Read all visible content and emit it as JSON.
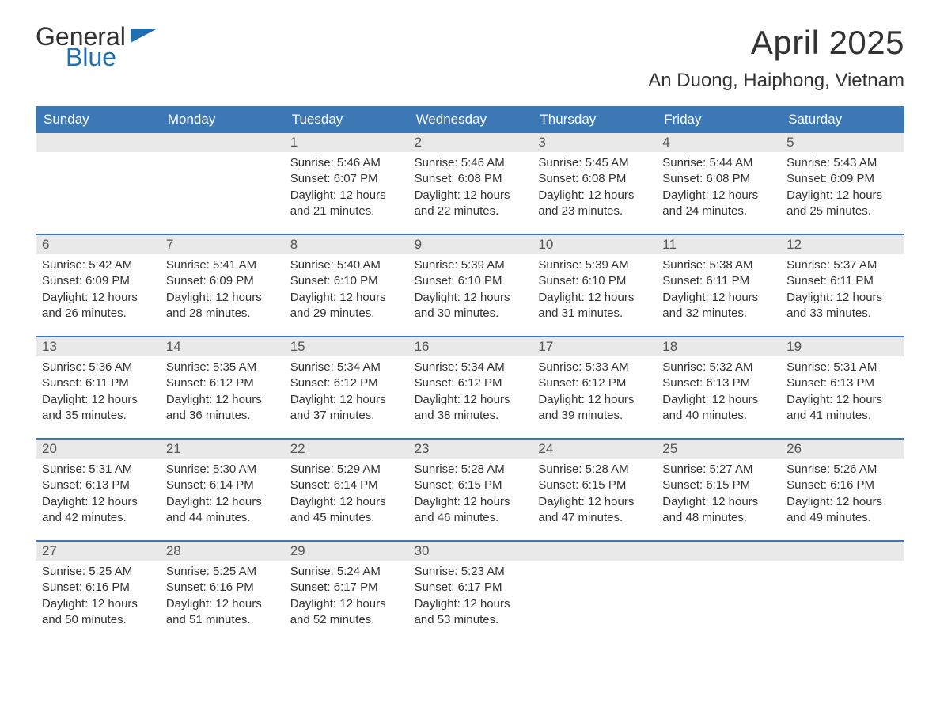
{
  "logo": {
    "text1": "General",
    "text2": "Blue",
    "color1": "#333333",
    "color2": "#1f6fb2",
    "flag_color": "#1f6fb2"
  },
  "title": "April 2025",
  "location": "An Duong, Haiphong, Vietnam",
  "weekday_header_bg": "#3b78b5",
  "weekday_header_fg": "#ffffff",
  "daynum_bg": "#e9e9e9",
  "row_border_color": "#3b78b5",
  "weekdays": [
    "Sunday",
    "Monday",
    "Tuesday",
    "Wednesday",
    "Thursday",
    "Friday",
    "Saturday"
  ],
  "weeks": [
    [
      {
        "blank": true
      },
      {
        "blank": true
      },
      {
        "day": "1",
        "sunrise": "Sunrise: 5:46 AM",
        "sunset": "Sunset: 6:07 PM",
        "daylight": "Daylight: 12 hours and 21 minutes."
      },
      {
        "day": "2",
        "sunrise": "Sunrise: 5:46 AM",
        "sunset": "Sunset: 6:08 PM",
        "daylight": "Daylight: 12 hours and 22 minutes."
      },
      {
        "day": "3",
        "sunrise": "Sunrise: 5:45 AM",
        "sunset": "Sunset: 6:08 PM",
        "daylight": "Daylight: 12 hours and 23 minutes."
      },
      {
        "day": "4",
        "sunrise": "Sunrise: 5:44 AM",
        "sunset": "Sunset: 6:08 PM",
        "daylight": "Daylight: 12 hours and 24 minutes."
      },
      {
        "day": "5",
        "sunrise": "Sunrise: 5:43 AM",
        "sunset": "Sunset: 6:09 PM",
        "daylight": "Daylight: 12 hours and 25 minutes."
      }
    ],
    [
      {
        "day": "6",
        "sunrise": "Sunrise: 5:42 AM",
        "sunset": "Sunset: 6:09 PM",
        "daylight": "Daylight: 12 hours and 26 minutes."
      },
      {
        "day": "7",
        "sunrise": "Sunrise: 5:41 AM",
        "sunset": "Sunset: 6:09 PM",
        "daylight": "Daylight: 12 hours and 28 minutes."
      },
      {
        "day": "8",
        "sunrise": "Sunrise: 5:40 AM",
        "sunset": "Sunset: 6:10 PM",
        "daylight": "Daylight: 12 hours and 29 minutes."
      },
      {
        "day": "9",
        "sunrise": "Sunrise: 5:39 AM",
        "sunset": "Sunset: 6:10 PM",
        "daylight": "Daylight: 12 hours and 30 minutes."
      },
      {
        "day": "10",
        "sunrise": "Sunrise: 5:39 AM",
        "sunset": "Sunset: 6:10 PM",
        "daylight": "Daylight: 12 hours and 31 minutes."
      },
      {
        "day": "11",
        "sunrise": "Sunrise: 5:38 AM",
        "sunset": "Sunset: 6:11 PM",
        "daylight": "Daylight: 12 hours and 32 minutes."
      },
      {
        "day": "12",
        "sunrise": "Sunrise: 5:37 AM",
        "sunset": "Sunset: 6:11 PM",
        "daylight": "Daylight: 12 hours and 33 minutes."
      }
    ],
    [
      {
        "day": "13",
        "sunrise": "Sunrise: 5:36 AM",
        "sunset": "Sunset: 6:11 PM",
        "daylight": "Daylight: 12 hours and 35 minutes."
      },
      {
        "day": "14",
        "sunrise": "Sunrise: 5:35 AM",
        "sunset": "Sunset: 6:12 PM",
        "daylight": "Daylight: 12 hours and 36 minutes."
      },
      {
        "day": "15",
        "sunrise": "Sunrise: 5:34 AM",
        "sunset": "Sunset: 6:12 PM",
        "daylight": "Daylight: 12 hours and 37 minutes."
      },
      {
        "day": "16",
        "sunrise": "Sunrise: 5:34 AM",
        "sunset": "Sunset: 6:12 PM",
        "daylight": "Daylight: 12 hours and 38 minutes."
      },
      {
        "day": "17",
        "sunrise": "Sunrise: 5:33 AM",
        "sunset": "Sunset: 6:12 PM",
        "daylight": "Daylight: 12 hours and 39 minutes."
      },
      {
        "day": "18",
        "sunrise": "Sunrise: 5:32 AM",
        "sunset": "Sunset: 6:13 PM",
        "daylight": "Daylight: 12 hours and 40 minutes."
      },
      {
        "day": "19",
        "sunrise": "Sunrise: 5:31 AM",
        "sunset": "Sunset: 6:13 PM",
        "daylight": "Daylight: 12 hours and 41 minutes."
      }
    ],
    [
      {
        "day": "20",
        "sunrise": "Sunrise: 5:31 AM",
        "sunset": "Sunset: 6:13 PM",
        "daylight": "Daylight: 12 hours and 42 minutes."
      },
      {
        "day": "21",
        "sunrise": "Sunrise: 5:30 AM",
        "sunset": "Sunset: 6:14 PM",
        "daylight": "Daylight: 12 hours and 44 minutes."
      },
      {
        "day": "22",
        "sunrise": "Sunrise: 5:29 AM",
        "sunset": "Sunset: 6:14 PM",
        "daylight": "Daylight: 12 hours and 45 minutes."
      },
      {
        "day": "23",
        "sunrise": "Sunrise: 5:28 AM",
        "sunset": "Sunset: 6:15 PM",
        "daylight": "Daylight: 12 hours and 46 minutes."
      },
      {
        "day": "24",
        "sunrise": "Sunrise: 5:28 AM",
        "sunset": "Sunset: 6:15 PM",
        "daylight": "Daylight: 12 hours and 47 minutes."
      },
      {
        "day": "25",
        "sunrise": "Sunrise: 5:27 AM",
        "sunset": "Sunset: 6:15 PM",
        "daylight": "Daylight: 12 hours and 48 minutes."
      },
      {
        "day": "26",
        "sunrise": "Sunrise: 5:26 AM",
        "sunset": "Sunset: 6:16 PM",
        "daylight": "Daylight: 12 hours and 49 minutes."
      }
    ],
    [
      {
        "day": "27",
        "sunrise": "Sunrise: 5:25 AM",
        "sunset": "Sunset: 6:16 PM",
        "daylight": "Daylight: 12 hours and 50 minutes."
      },
      {
        "day": "28",
        "sunrise": "Sunrise: 5:25 AM",
        "sunset": "Sunset: 6:16 PM",
        "daylight": "Daylight: 12 hours and 51 minutes."
      },
      {
        "day": "29",
        "sunrise": "Sunrise: 5:24 AM",
        "sunset": "Sunset: 6:17 PM",
        "daylight": "Daylight: 12 hours and 52 minutes."
      },
      {
        "day": "30",
        "sunrise": "Sunrise: 5:23 AM",
        "sunset": "Sunset: 6:17 PM",
        "daylight": "Daylight: 12 hours and 53 minutes."
      },
      {
        "blank": true
      },
      {
        "blank": true
      },
      {
        "blank": true
      }
    ]
  ]
}
